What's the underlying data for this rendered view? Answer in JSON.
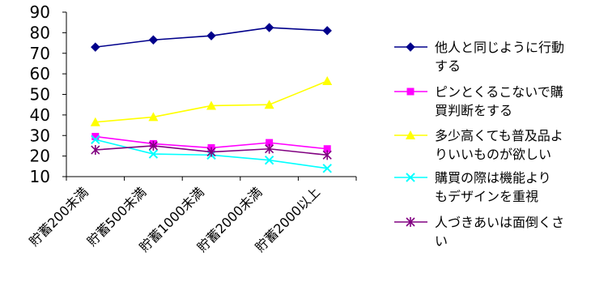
{
  "chart_data": {
    "type": "line",
    "categories": [
      "貯蓄200未満",
      "貯蓄500未満",
      "貯蓄1000未満",
      "貯蓄2000未満",
      "貯蓄2000以上"
    ],
    "ylim": [
      10,
      90
    ],
    "yticks": [
      10,
      20,
      30,
      40,
      50,
      60,
      70,
      80,
      90
    ],
    "grid": false,
    "legend": "right",
    "series": [
      {
        "name": "他人と同じように行動する",
        "legend_lines": [
          "他人と同じように行動",
          "する"
        ],
        "color": "#00008B",
        "marker": "diamond",
        "values": [
          73,
          76.5,
          78.5,
          82.5,
          81
        ]
      },
      {
        "name": "ピンとくるこないで購買判断をする",
        "legend_lines": [
          "ピンとくるこないで購",
          "買判断をする"
        ],
        "color": "#FF00FF",
        "marker": "square",
        "values": [
          29.5,
          26,
          24,
          26.5,
          23.5
        ]
      },
      {
        "name": "多少高くても普及品よりいいものが欲しい",
        "legend_lines": [
          "多少高くても普及品よ",
          "りいいものが欲しい"
        ],
        "color": "#FFFF00",
        "marker": "triangle",
        "values": [
          36.5,
          39,
          44.5,
          45,
          56.5
        ]
      },
      {
        "name": "購買の際は機能よりもデザインを重視",
        "legend_lines": [
          "購買の際は機能より",
          "もデザインを重視"
        ],
        "color": "#00FFFF",
        "marker": "x",
        "values": [
          28,
          21,
          20.5,
          18,
          14
        ]
      },
      {
        "name": "人づきあいは面倒くさい",
        "legend_lines": [
          "人づきあいは面倒くさ",
          "い"
        ],
        "color": "#800080",
        "marker": "star",
        "values": [
          23,
          25,
          22,
          23.5,
          20.5
        ]
      }
    ]
  }
}
